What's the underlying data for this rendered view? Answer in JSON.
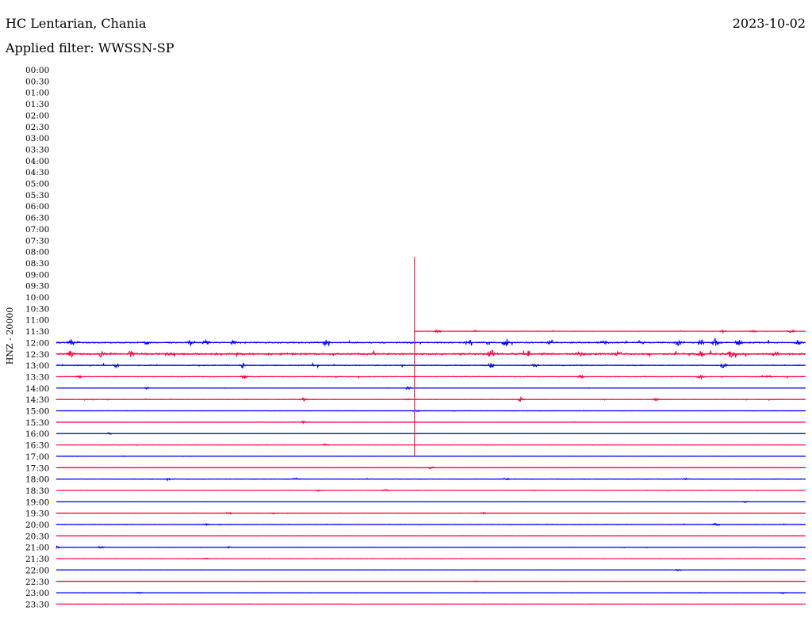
{
  "header": {
    "station": "HC Lentarian, Chania",
    "filter": "Applied filter: WWSSN-SP",
    "date": "2023-10-02"
  },
  "chart_data": {
    "type": "line",
    "title": "HC Lentarian, Chania",
    "subtitle": "Applied filter: WWSSN-SP",
    "date": "2023-10-02",
    "ylabel": "HNZ - 20000",
    "row_labels": [
      "00:00",
      "00:30",
      "01:00",
      "01:30",
      "02:00",
      "02:30",
      "03:00",
      "03:30",
      "04:00",
      "04:30",
      "05:00",
      "05:30",
      "06:00",
      "06:30",
      "07:00",
      "07:30",
      "08:00",
      "08:30",
      "09:00",
      "09:30",
      "10:00",
      "10:30",
      "11:00",
      "11:30",
      "12:00",
      "12:30",
      "13:00",
      "13:30",
      "14:00",
      "14:30",
      "15:00",
      "15:30",
      "16:00",
      "16:30",
      "17:00",
      "17:30",
      "18:00",
      "18:30",
      "19:00",
      "19:30",
      "20:00",
      "20:30",
      "21:00",
      "21:30",
      "22:00",
      "22:30",
      "23:00",
      "23:30"
    ],
    "first_trace_row": "11:30",
    "trace_colors": [
      "#ff0040",
      "#0000ee"
    ],
    "traces": [
      {
        "row": "11:30",
        "color": "#ff0040",
        "x_range": [
          0.478,
          1.0
        ],
        "noise": 0.22,
        "bursts": [
          [
            0.51,
            1.2
          ],
          [
            0.56,
            0.8
          ],
          [
            0.89,
            0.9
          ],
          [
            0.93,
            1.0
          ],
          [
            0.98,
            1.2
          ]
        ]
      },
      {
        "row": "12:00",
        "color": "#0000ee",
        "x_range": [
          0,
          1.0
        ],
        "noise": 0.9,
        "bursts": [
          [
            0.02,
            2.0
          ],
          [
            0.12,
            1.2
          ],
          [
            0.18,
            1.6
          ],
          [
            0.2,
            1.8
          ],
          [
            0.235,
            1.4
          ],
          [
            0.36,
            2.4
          ],
          [
            0.55,
            3.0
          ],
          [
            0.6,
            3.0
          ],
          [
            0.66,
            1.8
          ],
          [
            0.73,
            1.6
          ],
          [
            0.78,
            1.8
          ],
          [
            0.83,
            2.0
          ],
          [
            0.86,
            2.4
          ],
          [
            0.88,
            3.0
          ],
          [
            0.91,
            2.0
          ],
          [
            0.99,
            2.4
          ]
        ]
      },
      {
        "row": "12:30",
        "color": "#ff0040",
        "x_range": [
          0,
          1.0
        ],
        "noise": 1.3,
        "bursts": [
          [
            0.02,
            2.6
          ],
          [
            0.06,
            2.2
          ],
          [
            0.1,
            2.4
          ],
          [
            0.15,
            1.8
          ],
          [
            0.58,
            3.2
          ],
          [
            0.63,
            2.0
          ],
          [
            0.7,
            1.6
          ],
          [
            0.75,
            1.8
          ],
          [
            0.86,
            2.2
          ],
          [
            0.9,
            2.4
          ],
          [
            0.96,
            2.0
          ]
        ]
      },
      {
        "row": "13:00",
        "color": "#0000ee",
        "x_range": [
          0,
          1.0
        ],
        "noise": 0.7,
        "bursts": [
          [
            0.08,
            1.6
          ],
          [
            0.25,
            2.4
          ],
          [
            0.58,
            1.8
          ],
          [
            0.64,
            1.2
          ],
          [
            0.89,
            2.6
          ]
        ]
      },
      {
        "row": "13:30",
        "color": "#ff0040",
        "x_range": [
          0,
          1.0
        ],
        "noise": 0.45,
        "bursts": [
          [
            0.03,
            1.0
          ],
          [
            0.25,
            1.8
          ],
          [
            0.7,
            1.2
          ],
          [
            0.86,
            1.4
          ],
          [
            0.95,
            1.2
          ]
        ]
      },
      {
        "row": "14:00",
        "color": "#0000ee",
        "x_range": [
          0,
          1.0
        ],
        "noise": 0.15,
        "bursts": [
          [
            0.12,
            0.8
          ],
          [
            0.47,
            1.2
          ]
        ]
      },
      {
        "row": "14:30",
        "color": "#ff0040",
        "x_range": [
          0,
          1.0
        ],
        "noise": 0.35,
        "bursts": [
          [
            0.33,
            1.0
          ],
          [
            0.47,
            0.8
          ],
          [
            0.62,
            1.6
          ],
          [
            0.8,
            1.0
          ]
        ]
      },
      {
        "row": "15:00",
        "color": "#0000ee",
        "x_range": [
          0,
          1.0
        ],
        "noise": 0.18,
        "bursts": [
          [
            0.48,
            0.8
          ]
        ]
      },
      {
        "row": "15:30",
        "color": "#ff0040",
        "x_range": [
          0,
          1.0
        ],
        "noise": 0.15,
        "bursts": [
          [
            0.33,
            0.9
          ]
        ]
      },
      {
        "row": "16:00",
        "color": "#0000ee",
        "x_range": [
          0,
          1.0
        ],
        "noise": 0.12,
        "bursts": [
          [
            0.07,
            0.8
          ]
        ]
      },
      {
        "row": "16:30",
        "color": "#ff0040",
        "x_range": [
          0,
          1.0
        ],
        "noise": 0.2,
        "bursts": [
          [
            0.36,
            0.9
          ]
        ]
      },
      {
        "row": "17:00",
        "color": "#0000ee",
        "x_range": [
          0,
          1.0
        ],
        "noise": 0.12,
        "bursts": [
          [
            0.09,
            0.6
          ]
        ]
      },
      {
        "row": "17:30",
        "color": "#ff0040",
        "x_range": [
          0,
          1.0
        ],
        "noise": 0.15,
        "bursts": [
          [
            0.5,
            1.1
          ]
        ]
      },
      {
        "row": "18:00",
        "color": "#0000ee",
        "x_range": [
          0,
          1.0
        ],
        "noise": 0.25,
        "bursts": [
          [
            0.15,
            0.7
          ],
          [
            0.32,
            0.8
          ],
          [
            0.6,
            0.6
          ],
          [
            0.84,
            0.7
          ]
        ]
      },
      {
        "row": "18:30",
        "color": "#ff0040",
        "x_range": [
          0,
          1.0
        ],
        "noise": 0.2,
        "bursts": [
          [
            0.35,
            0.7
          ],
          [
            0.44,
            0.7
          ]
        ]
      },
      {
        "row": "19:00",
        "color": "#0000ee",
        "x_range": [
          0,
          1.0
        ],
        "noise": 0.12,
        "bursts": [
          [
            0.92,
            0.6
          ]
        ]
      },
      {
        "row": "19:30",
        "color": "#ff0040",
        "x_range": [
          0,
          1.0
        ],
        "noise": 0.22,
        "bursts": [
          [
            0.23,
            0.9
          ],
          [
            0.29,
            0.8
          ],
          [
            0.57,
            0.7
          ]
        ]
      },
      {
        "row": "20:00",
        "color": "#0000ee",
        "x_range": [
          0,
          1.0
        ],
        "noise": 0.3,
        "bursts": [
          [
            0.2,
            0.6
          ],
          [
            0.88,
            0.7
          ]
        ]
      },
      {
        "row": "20:30",
        "color": "#ff0040",
        "x_range": [
          0,
          1.0
        ],
        "noise": 0.15,
        "bursts": []
      },
      {
        "row": "21:00",
        "color": "#0000ee",
        "x_range": [
          0,
          1.0
        ],
        "noise": 0.25,
        "bursts": [
          [
            0.0,
            0.9
          ],
          [
            0.06,
            0.8
          ],
          [
            0.23,
            0.6
          ]
        ]
      },
      {
        "row": "21:30",
        "color": "#ff0040",
        "x_range": [
          0,
          1.0
        ],
        "noise": 0.15,
        "bursts": [
          [
            0.2,
            0.6
          ]
        ]
      },
      {
        "row": "22:00",
        "color": "#0000ee",
        "x_range": [
          0,
          1.0
        ],
        "noise": 0.12,
        "bursts": [
          [
            0.83,
            0.8
          ]
        ]
      },
      {
        "row": "22:30",
        "color": "#ff0040",
        "x_range": [
          0,
          1.0
        ],
        "noise": 0.12,
        "bursts": [
          [
            0.56,
            0.6
          ]
        ]
      },
      {
        "row": "23:00",
        "color": "#0000ee",
        "x_range": [
          0,
          1.0
        ],
        "noise": 0.12,
        "bursts": [
          [
            0.11,
            0.6
          ],
          [
            0.97,
            0.7
          ]
        ]
      },
      {
        "row": "23:30",
        "color": "#ff0040",
        "x_range": [
          0,
          1.0
        ],
        "noise": 0.12,
        "bursts": []
      }
    ],
    "spike": {
      "x": 0.478,
      "from_row": "08:30",
      "to_row": "17:00",
      "color": "#ff0040"
    }
  }
}
